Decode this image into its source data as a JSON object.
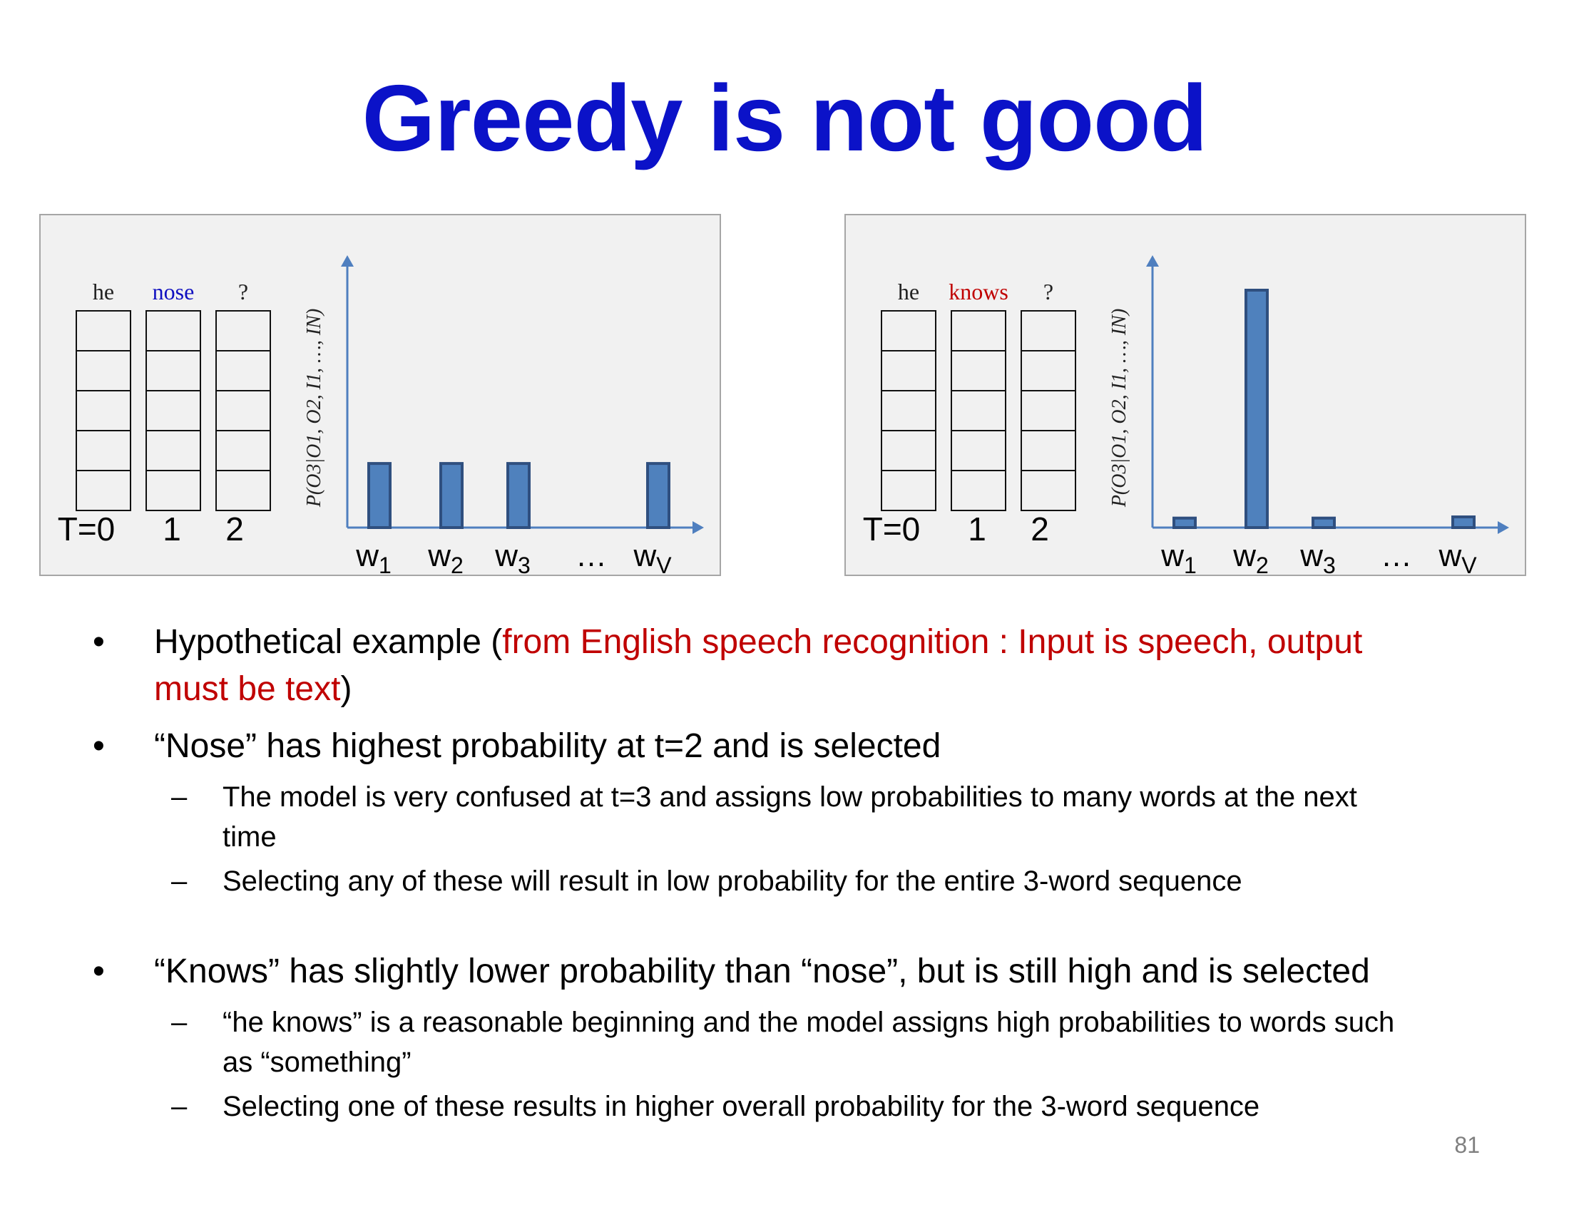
{
  "title": "Greedy is not good",
  "colors": {
    "title": "#0b12c8",
    "red": "#c00000",
    "bar": "#4f81bd",
    "bar_edge": "#2f4f7f",
    "axis": "#4f7fbf"
  },
  "panels": [
    {
      "words": {
        "w0": "he",
        "w1": "nose",
        "w2": "?"
      },
      "word1_color": "#1010c0",
      "time_labels": {
        "t0": "T=0",
        "t1": "1",
        "t2": "2"
      },
      "ylabel": "P(O3|O1, O2, I1, …, IN)",
      "xlabels": [
        "w",
        "w",
        "w",
        "…",
        "w"
      ],
      "xsubs": [
        "1",
        "2",
        "3",
        "",
        "V"
      ],
      "chart_data": {
        "type": "bar",
        "categories": [
          "w1",
          "w2",
          "w3",
          "…",
          "wV"
        ],
        "values": [
          0.27,
          0.27,
          0.27,
          null,
          0.27
        ],
        "ylim": [
          0,
          1
        ]
      }
    },
    {
      "words": {
        "w0": "he",
        "w1": "knows",
        "w2": "?"
      },
      "word1_color": "#c00000",
      "time_labels": {
        "t0": "T=0",
        "t1": "1",
        "t2": "2"
      },
      "ylabel": "P(O3|O1, O2, I1, …, IN)",
      "xlabels": [
        "w",
        "w",
        "w",
        "…",
        "w"
      ],
      "xsubs": [
        "1",
        "2",
        "3",
        "",
        "V"
      ],
      "chart_data": {
        "type": "bar",
        "categories": [
          "w1",
          "w2",
          "w3",
          "…",
          "wV"
        ],
        "values": [
          0.04,
          1.0,
          0.04,
          null,
          0.045
        ],
        "ylim": [
          0,
          1
        ]
      }
    }
  ],
  "bullets": [
    {
      "pre": "Hypothetical example (",
      "red": "from English speech recognition : Input is speech, output",
      "red2": "must be text",
      "post": ")"
    },
    {
      "text": "“Nose” has highest probability at t=2 and is selected"
    },
    {
      "text": "The model is very confused at t=3 and assigns low probabilities to many words at the next",
      "cont": "time"
    },
    {
      "text": "Selecting any of these will result in low probability for the entire 3-word sequence"
    },
    {
      "text": "“Knows” has slightly lower probability than “nose”, but is still high and is selected"
    },
    {
      "text": "“he knows” is a reasonable beginning and the model assigns high probabilities to words such",
      "cont": "as “something”"
    },
    {
      "text": "Selecting one of these results in higher overall probability for the 3-word sequence"
    }
  ],
  "bullet_marks": {
    "dot": "•",
    "dash": "–"
  },
  "page_number": "81"
}
